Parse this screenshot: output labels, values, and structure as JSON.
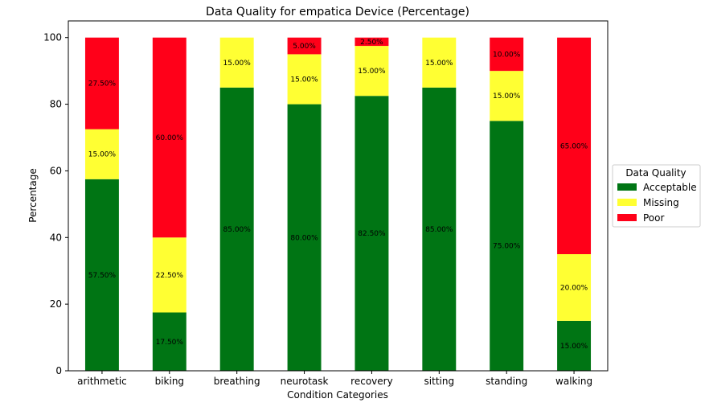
{
  "chart_data": {
    "type": "bar",
    "stacked": true,
    "title": "Data Quality for empatica Device (Percentage)",
    "xlabel": "Condition Categories",
    "ylabel": "Percentage",
    "ylim": [
      0,
      105
    ],
    "yticks": [
      0,
      20,
      40,
      60,
      80,
      100
    ],
    "grid": false,
    "categories": [
      "arithmetic",
      "biking",
      "breathing",
      "neurotask",
      "recovery",
      "sitting",
      "standing",
      "walking"
    ],
    "series": [
      {
        "name": "Acceptable",
        "color": "#007514",
        "values": [
          57.5,
          17.5,
          85.0,
          80.0,
          82.5,
          85.0,
          75.0,
          15.0
        ],
        "labels": [
          "57.50%",
          "17.50%",
          "85.00%",
          "80.00%",
          "82.50%",
          "85.00%",
          "75.00%",
          "15.00%"
        ]
      },
      {
        "name": "Missing",
        "color": "#ffff33",
        "values": [
          15.0,
          22.5,
          15.0,
          15.0,
          15.0,
          15.0,
          15.0,
          20.0
        ],
        "labels": [
          "15.00%",
          "22.50%",
          "15.00%",
          "15.00%",
          "15.00%",
          "15.00%",
          "15.00%",
          "20.00%"
        ]
      },
      {
        "name": "Poor",
        "color": "#ff0019",
        "values": [
          27.5,
          60.0,
          0,
          5.0,
          2.5,
          0,
          10.0,
          65.0
        ],
        "labels": [
          "27.50%",
          "60.00%",
          "",
          "5.00%",
          "2.50%",
          "",
          "10.00%",
          "65.00%"
        ]
      }
    ],
    "legend": {
      "title": "Data Quality",
      "placement": "right"
    }
  }
}
